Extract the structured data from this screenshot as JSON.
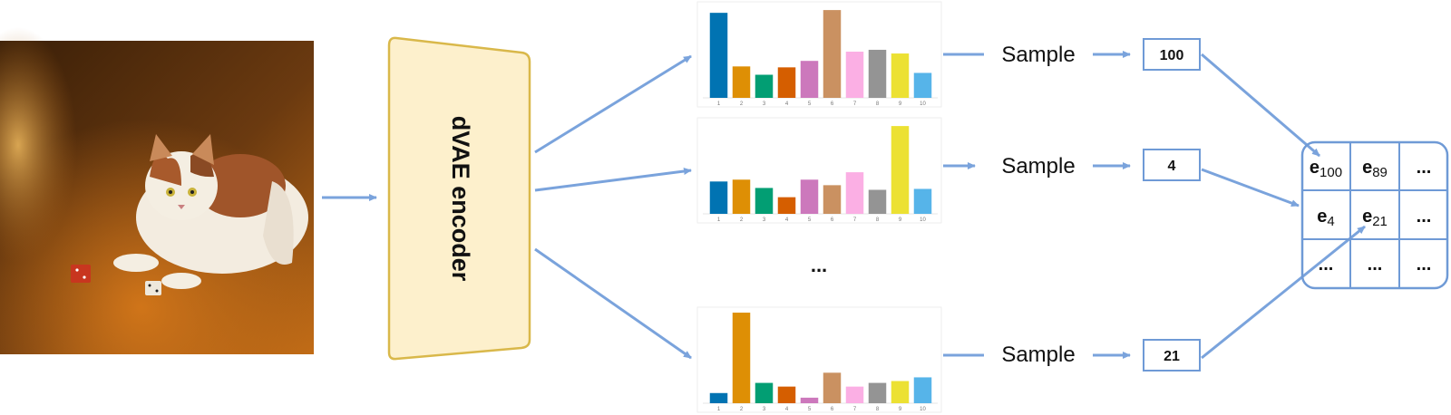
{
  "encoder": {
    "label": "dVAE encoder"
  },
  "sample_label": "Sample",
  "ellipsis": "...",
  "tokens": [
    "100",
    "4",
    "21"
  ],
  "grid": [
    [
      {
        "base": "e",
        "sub": "100"
      },
      {
        "base": "e",
        "sub": "89"
      },
      {
        "base": "...",
        "sub": ""
      }
    ],
    [
      {
        "base": "e",
        "sub": "4"
      },
      {
        "base": "e",
        "sub": "21"
      },
      {
        "base": "...",
        "sub": ""
      }
    ],
    [
      {
        "base": "...",
        "sub": ""
      },
      {
        "base": "...",
        "sub": ""
      },
      {
        "base": "...",
        "sub": ""
      }
    ]
  ],
  "colors": {
    "arrow": "#7aa3dc",
    "encoder_fill": "#fdf0cc",
    "encoder_stroke": "#d9b84a",
    "box_stroke": "#6f9ad6",
    "bar_palette": [
      "#0173b2",
      "#de8f05",
      "#029e73",
      "#d55e00",
      "#cc78bc",
      "#ca9161",
      "#fbafe4",
      "#949494",
      "#ece133",
      "#56b4e9"
    ]
  },
  "chart_data": [
    {
      "type": "bar",
      "categories": [
        "1",
        "2",
        "3",
        "4",
        "5",
        "6",
        "7",
        "8",
        "9",
        "10"
      ],
      "values": [
        0.92,
        0.34,
        0.25,
        0.33,
        0.4,
        0.95,
        0.5,
        0.52,
        0.48,
        0.27
      ]
    },
    {
      "type": "bar",
      "categories": [
        "1",
        "2",
        "3",
        "4",
        "5",
        "6",
        "7",
        "8",
        "9",
        "10"
      ],
      "values": [
        0.35,
        0.37,
        0.28,
        0.18,
        0.37,
        0.31,
        0.45,
        0.26,
        0.95,
        0.27
      ]
    },
    {
      "type": "bar",
      "categories": [
        "1",
        "2",
        "3",
        "4",
        "5",
        "6",
        "7",
        "8",
        "9",
        "10"
      ],
      "values": [
        0.11,
        0.98,
        0.22,
        0.18,
        0.06,
        0.33,
        0.18,
        0.22,
        0.24,
        0.28
      ]
    }
  ]
}
